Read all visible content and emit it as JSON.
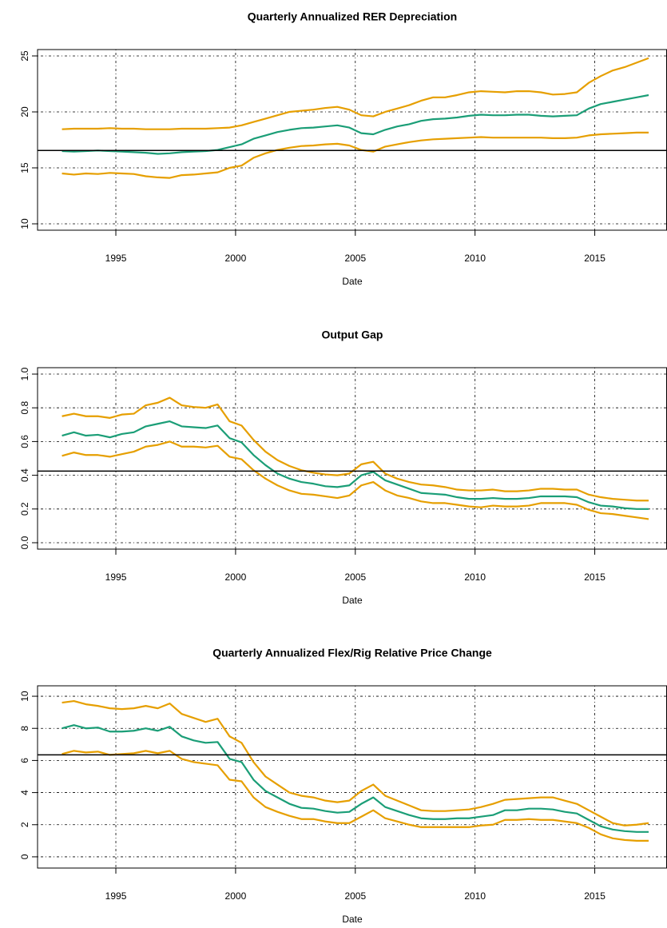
{
  "chart_data": [
    {
      "type": "line",
      "title": "Quarterly Annualized RER Depreciation",
      "xlabel": "Date",
      "x": [
        1992.75,
        1993.25,
        1993.75,
        1994.25,
        1994.75,
        1995.25,
        1995.75,
        1996.25,
        1996.75,
        1997.25,
        1997.75,
        1998.25,
        1998.75,
        1999.25,
        1999.75,
        2000.25,
        2000.75,
        2001.25,
        2001.75,
        2002.25,
        2002.75,
        2003.25,
        2003.75,
        2004.25,
        2004.75,
        2005.25,
        2005.75,
        2006.25,
        2006.75,
        2007.25,
        2007.75,
        2008.25,
        2008.75,
        2009.25,
        2009.75,
        2010.25,
        2010.75,
        2011.25,
        2011.75,
        2012.25,
        2012.75,
        2013.25,
        2013.75,
        2014.25,
        2014.75,
        2015.25,
        2015.75,
        2016.25,
        2016.75,
        2017.25
      ],
      "xlim": [
        1991.73,
        2018.0
      ],
      "xticks": [
        1995,
        2000,
        2005,
        2010,
        2015
      ],
      "ylim": [
        9.43,
        25.57
      ],
      "yticks": [
        10,
        15,
        20,
        25
      ],
      "hline": 16.55,
      "grid": true,
      "series": [
        {
          "color": "#e69f00",
          "values": [
            18.45,
            18.5,
            18.5,
            18.5,
            18.55,
            18.5,
            18.5,
            18.45,
            18.45,
            18.45,
            18.5,
            18.5,
            18.5,
            18.55,
            18.6,
            18.8,
            19.1,
            19.4,
            19.7,
            20.0,
            20.1,
            20.2,
            20.35,
            20.45,
            20.2,
            19.7,
            19.6,
            20.0,
            20.3,
            20.6,
            21.0,
            21.3,
            21.3,
            21.5,
            21.75,
            21.85,
            21.8,
            21.75,
            21.85,
            21.85,
            21.75,
            21.55,
            21.6,
            21.75,
            22.6,
            23.2,
            23.7,
            24.0,
            24.4,
            24.8
          ]
        },
        {
          "color": "#1b9e77",
          "values": [
            16.5,
            16.45,
            16.5,
            16.55,
            16.5,
            16.45,
            16.4,
            16.35,
            16.25,
            16.3,
            16.4,
            16.45,
            16.5,
            16.6,
            16.85,
            17.1,
            17.6,
            17.9,
            18.2,
            18.4,
            18.55,
            18.6,
            18.7,
            18.8,
            18.6,
            18.1,
            18.0,
            18.4,
            18.7,
            18.9,
            19.2,
            19.35,
            19.4,
            19.5,
            19.65,
            19.75,
            19.7,
            19.7,
            19.75,
            19.75,
            19.65,
            19.6,
            19.65,
            19.7,
            20.3,
            20.7,
            20.9,
            21.1,
            21.3,
            21.5
          ]
        },
        {
          "color": "#e69f00",
          "values": [
            14.5,
            14.4,
            14.5,
            14.45,
            14.55,
            14.5,
            14.45,
            14.25,
            14.15,
            14.1,
            14.35,
            14.4,
            14.5,
            14.6,
            15.0,
            15.2,
            15.9,
            16.3,
            16.6,
            16.8,
            16.95,
            17.0,
            17.1,
            17.15,
            17.0,
            16.6,
            16.45,
            16.9,
            17.1,
            17.3,
            17.45,
            17.55,
            17.6,
            17.65,
            17.7,
            17.75,
            17.7,
            17.7,
            17.7,
            17.7,
            17.7,
            17.65,
            17.65,
            17.7,
            17.9,
            18.0,
            18.05,
            18.1,
            18.15,
            18.15
          ]
        }
      ]
    },
    {
      "type": "line",
      "title": "Output Gap",
      "xlabel": "Date",
      "x": [
        1992.75,
        1993.25,
        1993.75,
        1994.25,
        1994.75,
        1995.25,
        1995.75,
        1996.25,
        1996.75,
        1997.25,
        1997.75,
        1998.25,
        1998.75,
        1999.25,
        1999.75,
        2000.25,
        2000.75,
        2001.25,
        2001.75,
        2002.25,
        2002.75,
        2003.25,
        2003.75,
        2004.25,
        2004.75,
        2005.25,
        2005.75,
        2006.25,
        2006.75,
        2007.25,
        2007.75,
        2008.25,
        2008.75,
        2009.25,
        2009.75,
        2010.25,
        2010.75,
        2011.25,
        2011.75,
        2012.25,
        2012.75,
        2013.25,
        2013.75,
        2014.25,
        2014.75,
        2015.25,
        2015.75,
        2016.25,
        2016.75,
        2017.25
      ],
      "xlim": [
        1991.73,
        2018.0
      ],
      "xticks": [
        1995,
        2000,
        2005,
        2010,
        2015
      ],
      "ylim": [
        -0.038,
        1.038
      ],
      "yticks": [
        {
          "value": 0,
          "label": "0.0"
        },
        0.2,
        0.4,
        0.6,
        0.8,
        {
          "value": 1,
          "label": "1.0"
        }
      ],
      "hline": 0.425,
      "grid": true,
      "series": [
        {
          "color": "#e69f00",
          "values": [
            0.75,
            0.765,
            0.75,
            0.75,
            0.74,
            0.76,
            0.765,
            0.815,
            0.83,
            0.86,
            0.815,
            0.805,
            0.8,
            0.82,
            0.72,
            0.695,
            0.61,
            0.54,
            0.49,
            0.455,
            0.43,
            0.415,
            0.405,
            0.4,
            0.41,
            0.465,
            0.48,
            0.41,
            0.38,
            0.36,
            0.345,
            0.34,
            0.33,
            0.315,
            0.31,
            0.31,
            0.315,
            0.305,
            0.305,
            0.31,
            0.32,
            0.32,
            0.315,
            0.315,
            0.285,
            0.27,
            0.26,
            0.255,
            0.25,
            0.25
          ]
        },
        {
          "color": "#1b9e77",
          "values": [
            0.635,
            0.655,
            0.635,
            0.64,
            0.625,
            0.645,
            0.655,
            0.69,
            0.705,
            0.72,
            0.69,
            0.685,
            0.68,
            0.695,
            0.62,
            0.595,
            0.52,
            0.46,
            0.41,
            0.38,
            0.36,
            0.35,
            0.335,
            0.33,
            0.34,
            0.4,
            0.42,
            0.37,
            0.345,
            0.32,
            0.295,
            0.29,
            0.285,
            0.27,
            0.26,
            0.26,
            0.265,
            0.26,
            0.26,
            0.265,
            0.275,
            0.275,
            0.275,
            0.27,
            0.24,
            0.22,
            0.215,
            0.205,
            0.2,
            0.2
          ]
        },
        {
          "color": "#e69f00",
          "values": [
            0.515,
            0.535,
            0.52,
            0.52,
            0.51,
            0.525,
            0.54,
            0.57,
            0.58,
            0.6,
            0.57,
            0.57,
            0.565,
            0.575,
            0.51,
            0.495,
            0.43,
            0.38,
            0.34,
            0.31,
            0.29,
            0.285,
            0.275,
            0.265,
            0.28,
            0.34,
            0.36,
            0.31,
            0.28,
            0.265,
            0.245,
            0.235,
            0.235,
            0.225,
            0.215,
            0.21,
            0.22,
            0.215,
            0.215,
            0.22,
            0.235,
            0.235,
            0.235,
            0.225,
            0.195,
            0.175,
            0.17,
            0.16,
            0.15,
            0.14
          ]
        }
      ]
    },
    {
      "type": "line",
      "title": "Quarterly Annualized Flex/Rig Relative Price Change",
      "xlabel": "Date",
      "x": [
        1992.75,
        1993.25,
        1993.75,
        1994.25,
        1994.75,
        1995.25,
        1995.75,
        1996.25,
        1996.75,
        1997.25,
        1997.75,
        1998.25,
        1998.75,
        1999.25,
        1999.75,
        2000.25,
        2000.75,
        2001.25,
        2001.75,
        2002.25,
        2002.75,
        2003.25,
        2003.75,
        2004.25,
        2004.75,
        2005.25,
        2005.75,
        2006.25,
        2006.75,
        2007.25,
        2007.75,
        2008.25,
        2008.75,
        2009.25,
        2009.75,
        2010.25,
        2010.75,
        2011.25,
        2011.75,
        2012.25,
        2012.75,
        2013.25,
        2013.75,
        2014.25,
        2014.75,
        2015.25,
        2015.75,
        2016.25,
        2016.75,
        2017.25
      ],
      "xlim": [
        1991.73,
        2018.0
      ],
      "xticks": [
        1995,
        2000,
        2005,
        2010,
        2015
      ],
      "ylim": [
        -0.7,
        10.65
      ],
      "yticks": [
        0,
        2,
        4,
        6,
        8,
        10
      ],
      "hline": 6.35,
      "grid": true,
      "series": [
        {
          "color": "#e69f00",
          "values": [
            9.6,
            9.7,
            9.5,
            9.4,
            9.25,
            9.2,
            9.25,
            9.4,
            9.25,
            9.55,
            8.9,
            8.65,
            8.4,
            8.6,
            7.5,
            7.1,
            5.9,
            5.0,
            4.5,
            4.0,
            3.8,
            3.7,
            3.5,
            3.4,
            3.5,
            4.1,
            4.5,
            3.8,
            3.5,
            3.2,
            2.9,
            2.85,
            2.85,
            2.9,
            2.95,
            3.1,
            3.3,
            3.55,
            3.6,
            3.65,
            3.7,
            3.7,
            3.5,
            3.3,
            2.9,
            2.5,
            2.1,
            1.95,
            2.0,
            2.1
          ]
        },
        {
          "color": "#1b9e77",
          "values": [
            8.0,
            8.2,
            8.0,
            8.05,
            7.8,
            7.8,
            7.85,
            8.0,
            7.85,
            8.1,
            7.5,
            7.25,
            7.1,
            7.15,
            6.1,
            5.9,
            4.8,
            4.1,
            3.7,
            3.3,
            3.05,
            3.0,
            2.85,
            2.75,
            2.8,
            3.3,
            3.7,
            3.1,
            2.85,
            2.6,
            2.4,
            2.35,
            2.35,
            2.4,
            2.4,
            2.5,
            2.6,
            2.9,
            2.9,
            3.0,
            3.0,
            2.95,
            2.8,
            2.7,
            2.3,
            1.9,
            1.7,
            1.6,
            1.55,
            1.55
          ]
        },
        {
          "color": "#e69f00",
          "values": [
            6.4,
            6.6,
            6.5,
            6.55,
            6.35,
            6.4,
            6.45,
            6.6,
            6.45,
            6.6,
            6.1,
            5.9,
            5.8,
            5.7,
            4.8,
            4.7,
            3.7,
            3.1,
            2.8,
            2.55,
            2.35,
            2.35,
            2.2,
            2.1,
            2.1,
            2.5,
            2.9,
            2.4,
            2.2,
            2.0,
            1.85,
            1.85,
            1.85,
            1.85,
            1.85,
            1.95,
            2.0,
            2.3,
            2.3,
            2.35,
            2.3,
            2.3,
            2.2,
            2.1,
            1.8,
            1.4,
            1.15,
            1.05,
            1.0,
            1.0
          ]
        }
      ]
    }
  ]
}
